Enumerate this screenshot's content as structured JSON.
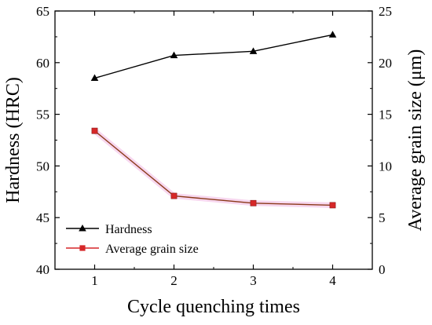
{
  "chart_data": {
    "type": "line",
    "title": "",
    "xlabel": "Cycle quenching times",
    "ylabel_left": "Hardness (HRC)",
    "ylabel_right": "Average grain size (μm)",
    "x": [
      1,
      2,
      3,
      4
    ],
    "xlim": [
      0.5,
      4.5
    ],
    "x_ticks": [
      "1",
      "2",
      "3",
      "4"
    ],
    "ylim_left": [
      40,
      65
    ],
    "y_ticks_left": [
      "40",
      "45",
      "50",
      "55",
      "60",
      "65"
    ],
    "ylim_right": [
      0,
      25
    ],
    "y_ticks_right": [
      "0",
      "5",
      "10",
      "15",
      "20",
      "25"
    ],
    "grid": false,
    "legend_placement": "bottom-left",
    "series": [
      {
        "name": "Hardness",
        "axis": "left",
        "values": [
          58.5,
          60.7,
          61.1,
          62.7
        ],
        "color": "#000000",
        "marker": "triangle"
      },
      {
        "name": "Average grain size",
        "axis": "right",
        "values": [
          13.4,
          7.1,
          6.4,
          6.2
        ],
        "color": "#d62728",
        "line_color": "#8b3a1a",
        "marker": "square"
      }
    ]
  }
}
